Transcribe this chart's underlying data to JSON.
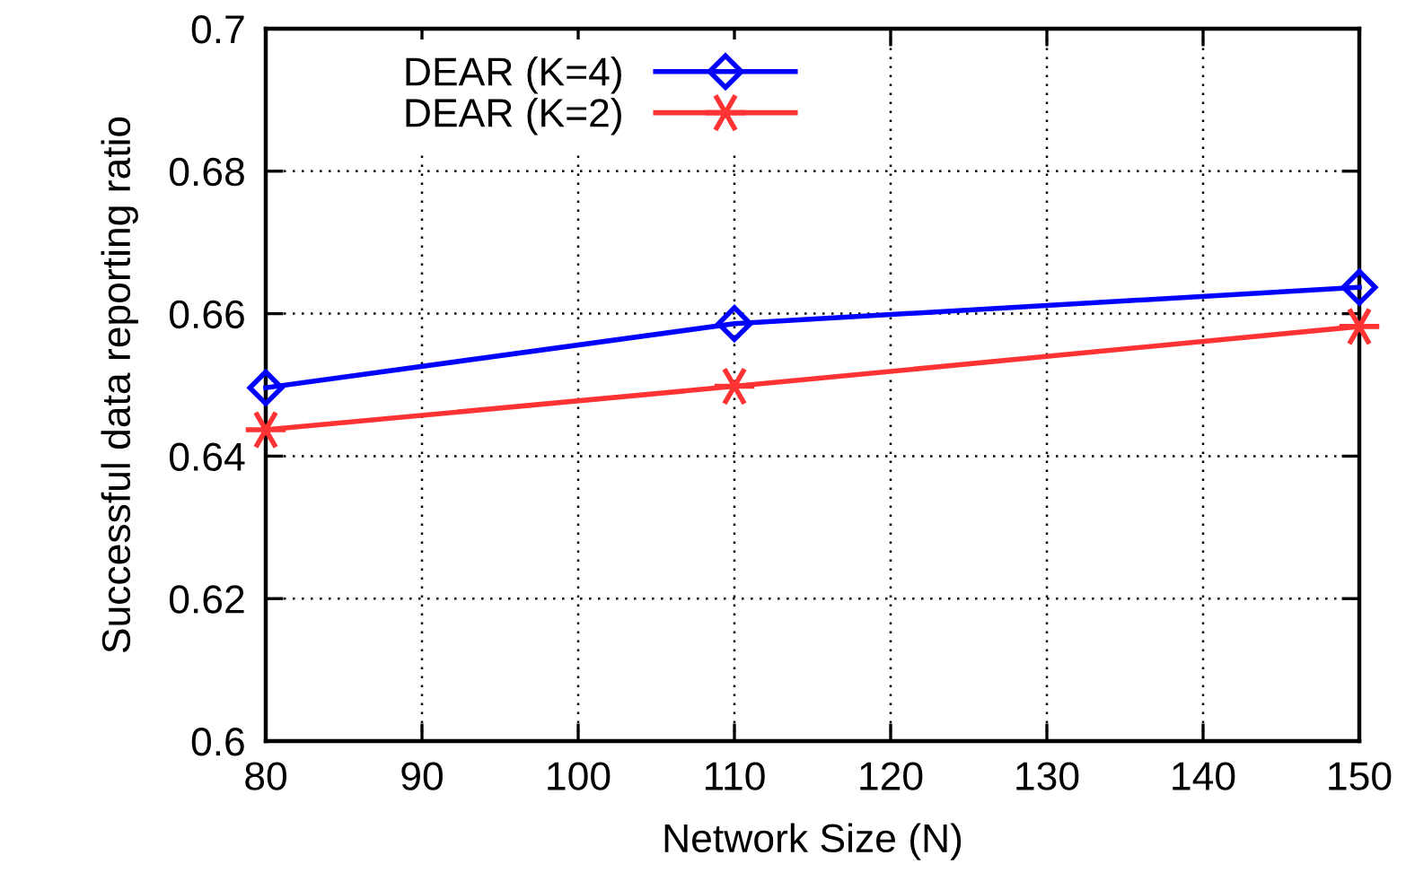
{
  "chart_data": {
    "type": "line",
    "xlabel": "Network Size (N)",
    "ylabel": "Successful data reporting ratio",
    "x": [
      80,
      110,
      150
    ],
    "series": [
      {
        "name": "DEAR (K=4)",
        "color": "#0000ff",
        "marker": "diamond",
        "values": [
          0.6496,
          0.6586,
          0.6637
        ]
      },
      {
        "name": "DEAR (K=2)",
        "color": "#ff3333",
        "marker": "cross",
        "values": [
          0.6437,
          0.6498,
          0.6582
        ]
      }
    ],
    "xlim": [
      80,
      150
    ],
    "xticks": [
      80,
      90,
      100,
      110,
      120,
      130,
      140,
      150
    ],
    "ylim": [
      0.6,
      0.7
    ],
    "yticks": [
      {
        "value": 0.6,
        "label": "0.6"
      },
      {
        "value": 0.62,
        "label": "0.62"
      },
      {
        "value": 0.64,
        "label": "0.64"
      },
      {
        "value": 0.66,
        "label": "0.66"
      },
      {
        "value": 0.68,
        "label": "0.68"
      },
      {
        "value": 0.7,
        "label": "0.7"
      }
    ],
    "grid": true,
    "legend": "top left",
    "line_style": "solid"
  }
}
